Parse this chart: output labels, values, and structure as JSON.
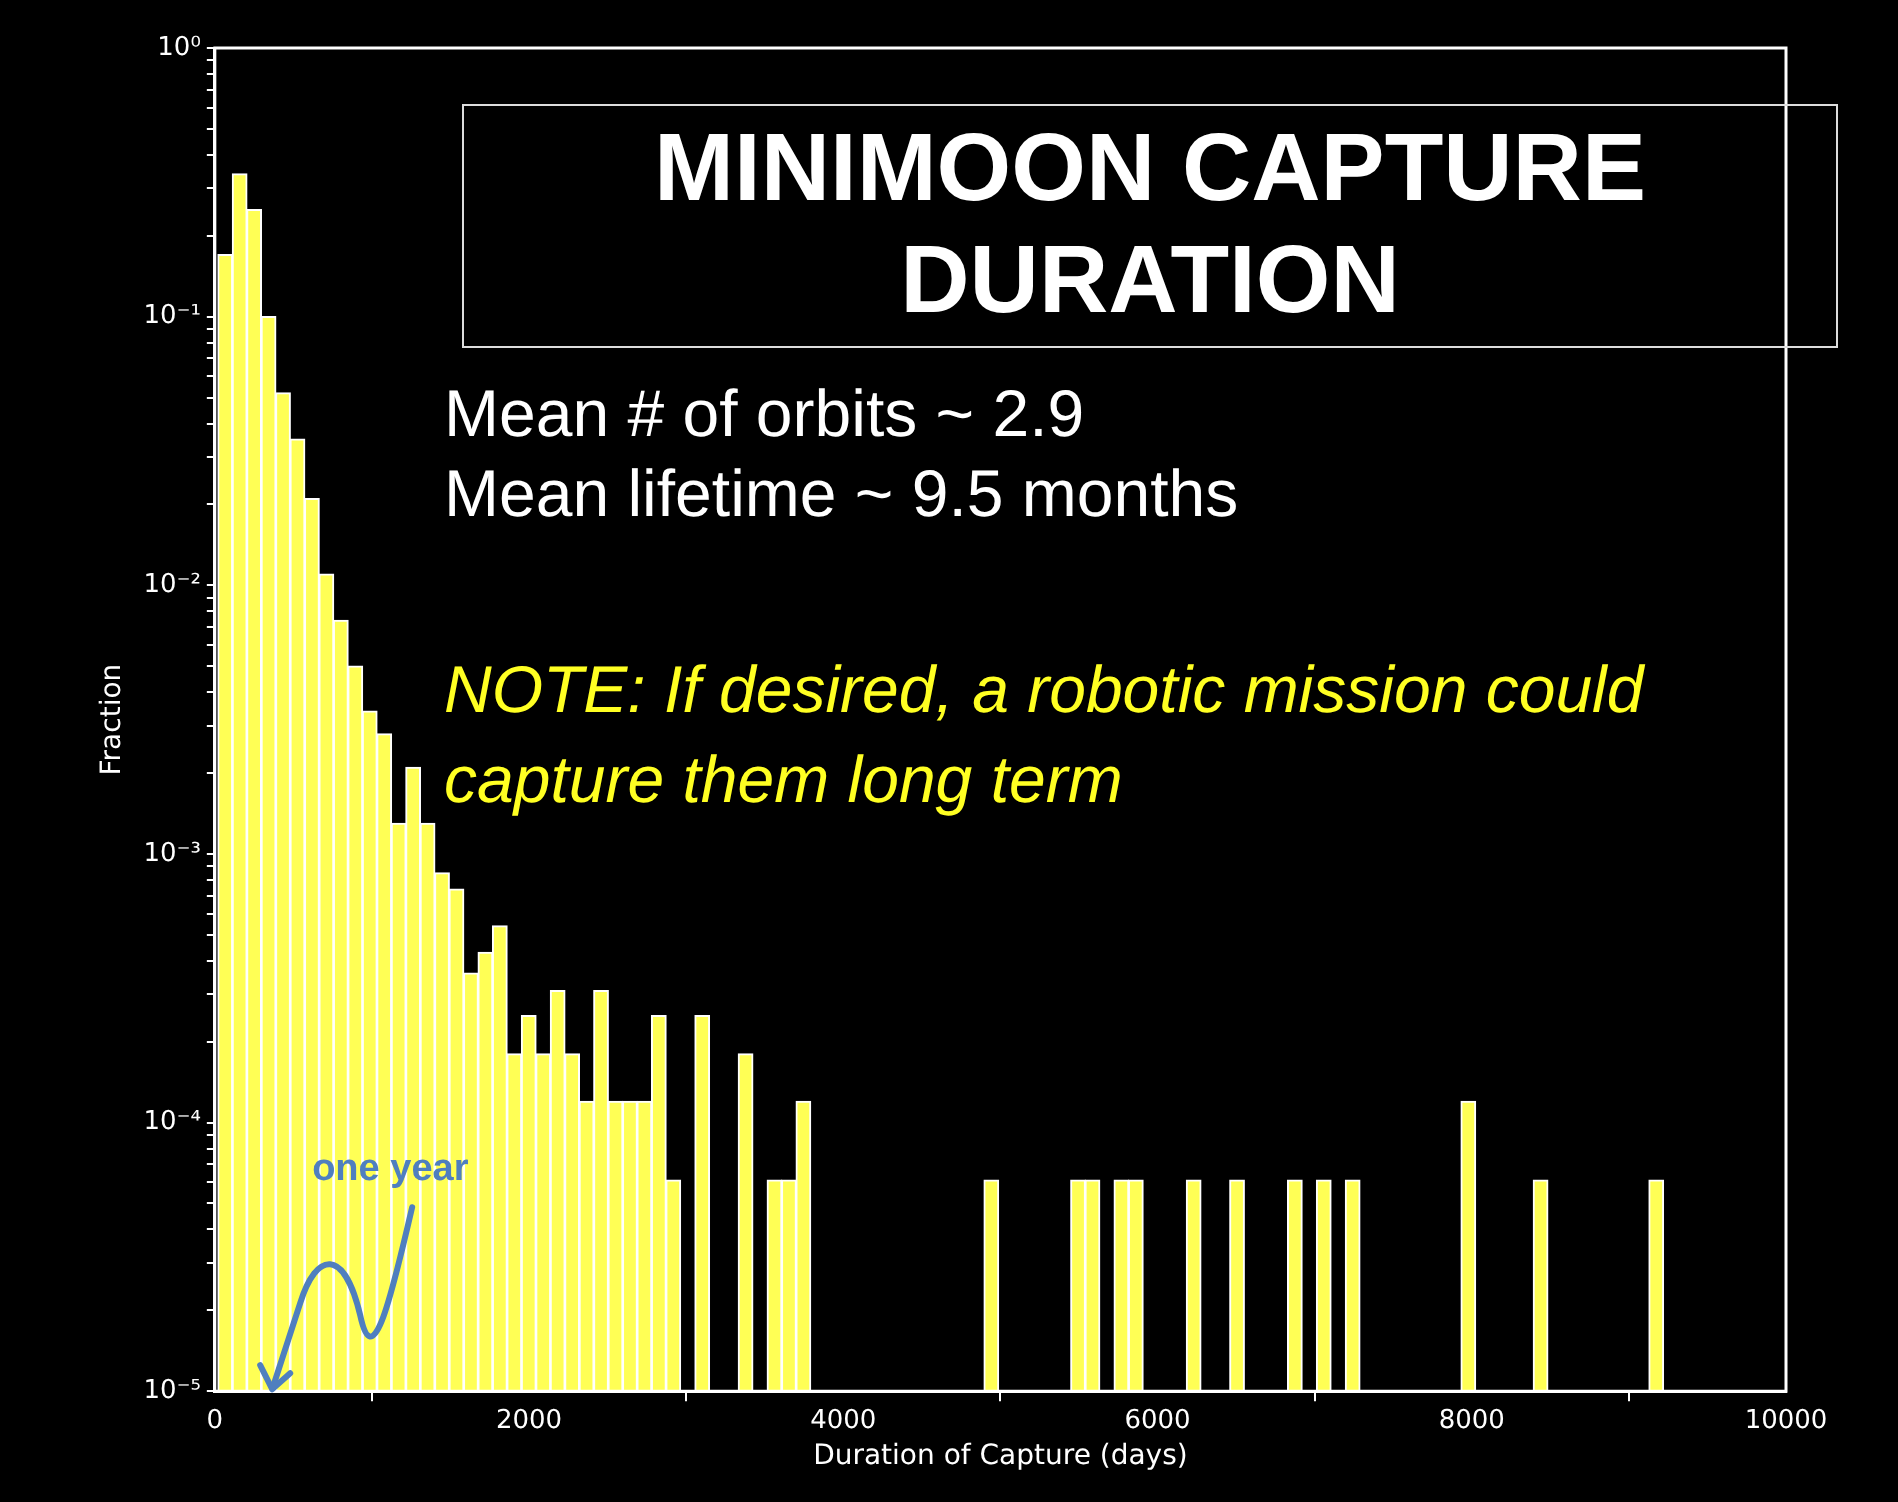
{
  "chart_data": {
    "type": "histogram",
    "title": "MINIMOON CAPTURE DURATION",
    "xlabel": "Duration of Capture (days)",
    "ylabel": "Fraction",
    "bins": [
      20,
      112,
      204,
      296,
      388,
      480,
      572,
      664,
      756,
      848,
      940,
      1032,
      1124,
      1216,
      1308,
      1400,
      1492,
      1584,
      1676,
      1768,
      1860,
      1952,
      2044,
      2136,
      2228,
      2320,
      2412,
      2504,
      2596,
      2688,
      2780,
      2872,
      2964,
      3056,
      3148,
      3240,
      3332,
      3424,
      3516,
      3608,
      3700,
      3792,
      3884,
      3976,
      4068,
      4160,
      4252,
      4344,
      4436,
      4528,
      4620,
      4712,
      4804,
      4896,
      4988,
      5080,
      5172,
      5264,
      5356,
      5448,
      5540,
      5632,
      5724,
      5816,
      5908,
      6000,
      6092,
      6184,
      6276,
      6368,
      6460,
      6552,
      6644,
      6736,
      6828,
      6920,
      7012,
      7104,
      7196,
      7288,
      7380,
      7472,
      7564,
      7656,
      7748,
      7840,
      7932,
      8024,
      8116,
      8208,
      8300,
      8392,
      8484,
      8576,
      8668,
      8760,
      8852,
      8944,
      9036,
      9128,
      9220
    ],
    "values": [
      0.17,
      0.34,
      0.25,
      0.1,
      0.052,
      0.035,
      0.021,
      0.011,
      0.0074,
      0.005,
      0.0034,
      0.0028,
      0.0013,
      0.0021,
      0.0013,
      0.00085,
      0.00074,
      0.00036,
      0.00043,
      0.00054,
      0.00018,
      0.00025,
      0.00018,
      0.00031,
      0.00018,
      0.00012,
      0.00031,
      0.00012,
      0.00012,
      0.00012,
      0.00025,
      6.1e-05,
      null,
      0.00025,
      null,
      null,
      0.00018,
      null,
      6.1e-05,
      6.1e-05,
      0.00012,
      null,
      null,
      null,
      null,
      null,
      null,
      null,
      null,
      null,
      null,
      null,
      null,
      6.1e-05,
      null,
      null,
      null,
      null,
      null,
      6.1e-05,
      6.1e-05,
      null,
      6.1e-05,
      6.1e-05,
      null,
      null,
      null,
      6.1e-05,
      null,
      null,
      6.1e-05,
      null,
      null,
      null,
      6.1e-05,
      null,
      6.1e-05,
      null,
      6.1e-05,
      null,
      null,
      null,
      null,
      null,
      null,
      null,
      0.00012,
      null,
      null,
      null,
      null,
      6.1e-05,
      null,
      null,
      null,
      null,
      null,
      null,
      null,
      6.1e-05
    ],
    "color": "#ffff55",
    "log": "y",
    "xlim": [
      0,
      10000
    ],
    "xticks": [
      0,
      2000,
      4000,
      6000,
      8000,
      10000
    ],
    "ylim": [
      1e-05,
      1
    ],
    "yticks": [
      {
        "value": 1e-05,
        "label": "10⁻⁵"
      },
      {
        "value": 2e-05,
        "label": null
      },
      {
        "value": 3e-05,
        "label": null
      },
      {
        "value": 4e-05,
        "label": null
      },
      {
        "value": 5e-05,
        "label": null
      },
      {
        "value": 6e-05,
        "label": null
      },
      {
        "value": 7e-05,
        "label": null
      },
      {
        "value": 8e-05,
        "label": null
      },
      {
        "value": 9e-05,
        "label": null
      },
      {
        "value": 0.0001,
        "label": "10⁻⁴"
      },
      {
        "value": 0.0002,
        "label": null
      },
      {
        "value": 0.0003,
        "label": null
      },
      {
        "value": 0.0004,
        "label": null
      },
      {
        "value": 0.0005,
        "label": null
      },
      {
        "value": 0.0006,
        "label": null
      },
      {
        "value": 0.0007,
        "label": null
      },
      {
        "value": 0.0008,
        "label": null
      },
      {
        "value": 0.0009,
        "label": null
      },
      {
        "value": 0.001,
        "label": "10⁻³"
      },
      {
        "value": 0.002,
        "label": null
      },
      {
        "value": 0.003,
        "label": null
      },
      {
        "value": 0.004,
        "label": null
      },
      {
        "value": 0.005,
        "label": null
      },
      {
        "value": 0.006,
        "label": null
      },
      {
        "value": 0.007,
        "label": null
      },
      {
        "value": 0.008,
        "label": null
      },
      {
        "value": 0.009,
        "label": null
      },
      {
        "value": 0.01,
        "label": "10⁻²"
      },
      {
        "value": 0.02,
        "label": null
      },
      {
        "value": 0.03,
        "label": null
      },
      {
        "value": 0.04,
        "label": null
      },
      {
        "value": 0.05,
        "label": null
      },
      {
        "value": 0.06,
        "label": null
      },
      {
        "value": 0.07,
        "label": null
      },
      {
        "value": 0.08,
        "label": null
      },
      {
        "value": 0.09,
        "label": null
      },
      {
        "value": 0.1,
        "label": "10⁻¹"
      },
      {
        "value": 0.2,
        "label": null
      },
      {
        "value": 0.3,
        "label": null
      },
      {
        "value": 0.4,
        "label": null
      },
      {
        "value": 0.5,
        "label": null
      },
      {
        "value": 0.6,
        "label": null
      },
      {
        "value": 0.7,
        "label": null
      },
      {
        "value": 0.8,
        "label": null
      },
      {
        "value": 0.9,
        "label": null
      },
      {
        "value": 1,
        "label": "10⁰"
      }
    ],
    "grid": false,
    "legend": false,
    "annotations": [
      "Mean # of orbits ~ 2.9",
      "Mean lifetime ~ 9.5 months",
      "NOTE: If desired, a robotic mission could capture them long term",
      {
        "text": "one year",
        "x": 365,
        "y": 1e-05
      }
    ]
  }
}
